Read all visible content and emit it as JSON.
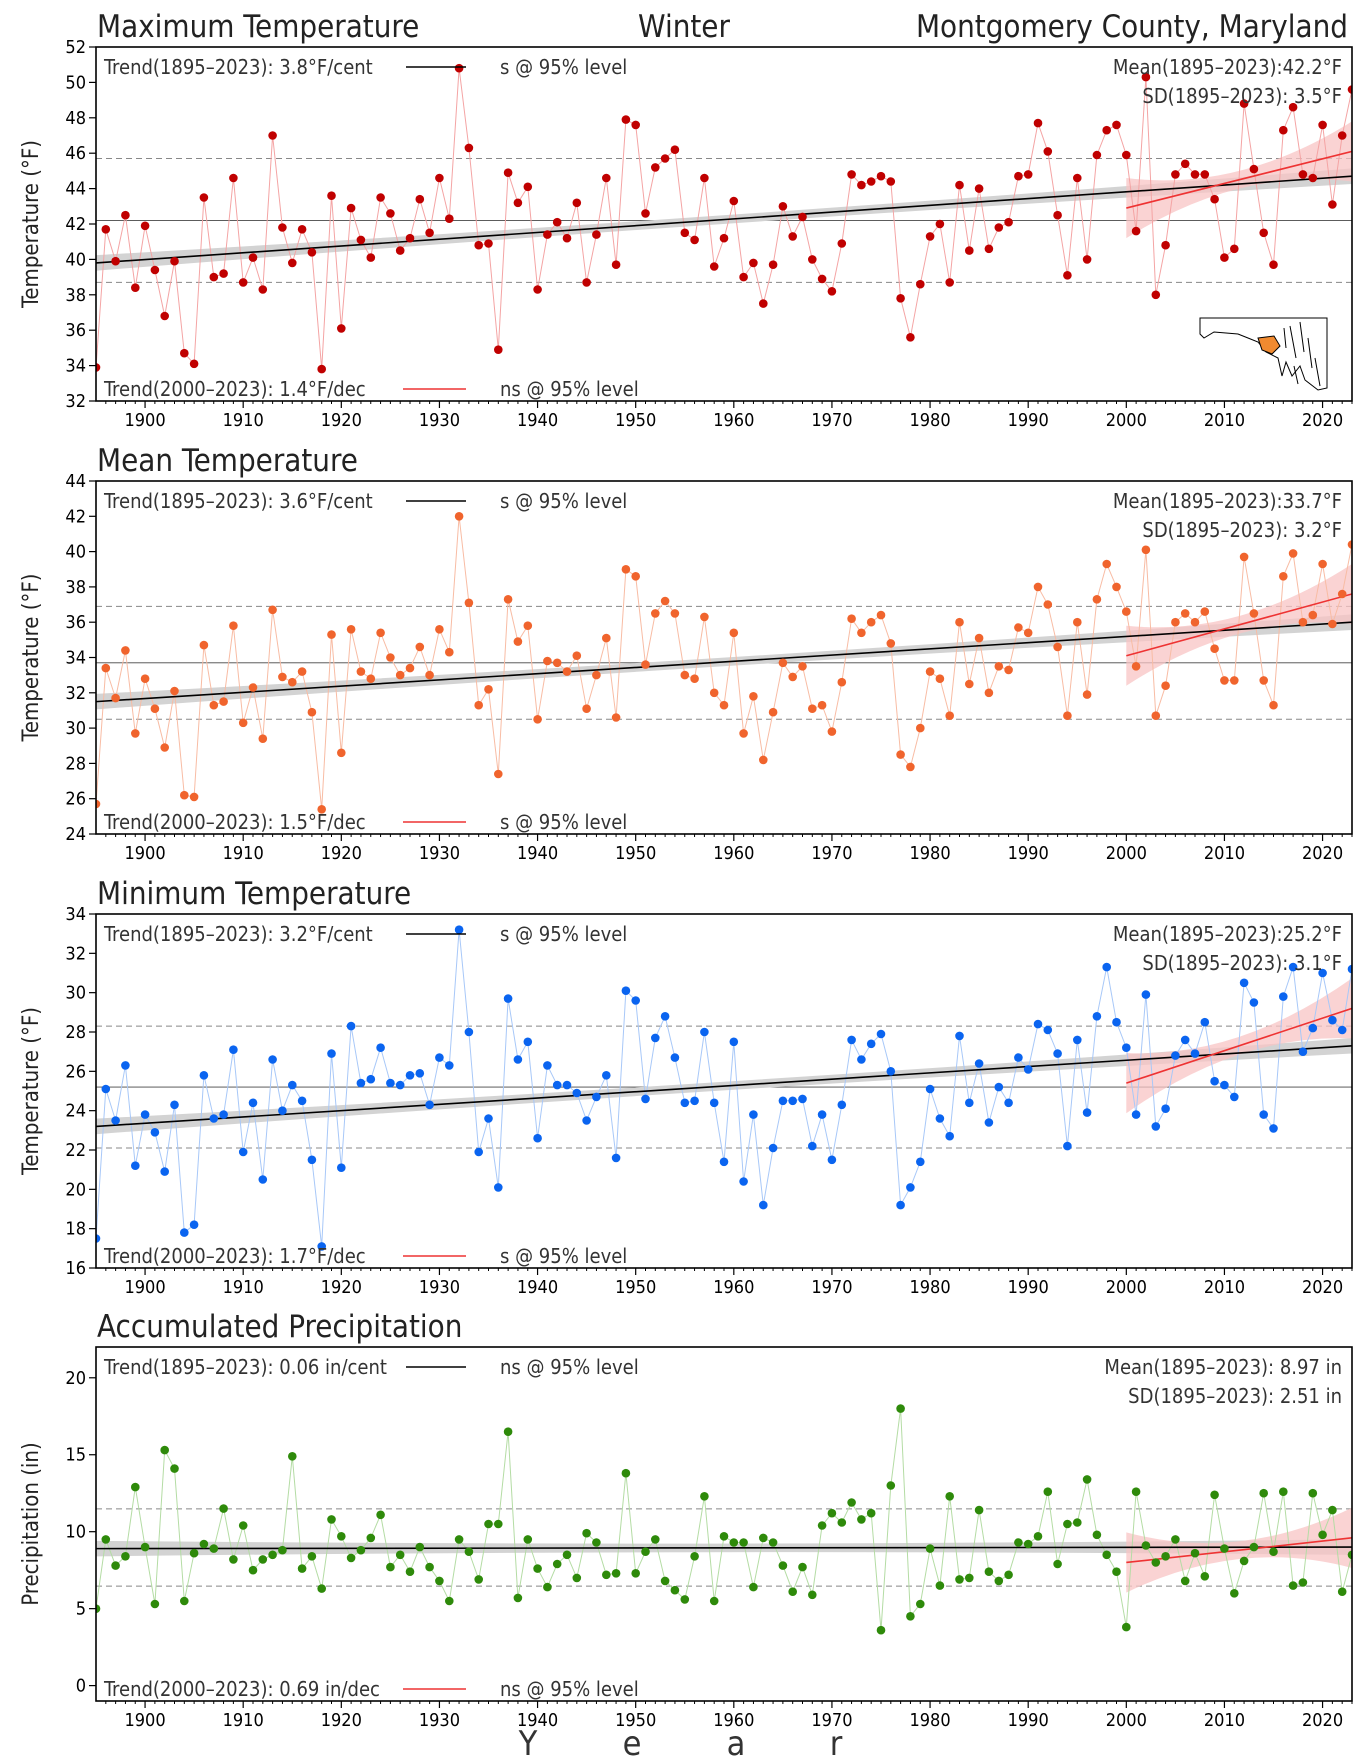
{
  "header": {
    "left": "Maximum Temperature",
    "center": "Winter",
    "right": "Montgomery County, Maryland"
  },
  "xaxis": {
    "label_letters": [
      "Y",
      "e",
      "a",
      "r"
    ],
    "ticks": [
      1900,
      1910,
      1920,
      1930,
      1940,
      1950,
      1960,
      1970,
      1980,
      1990,
      2000,
      2010,
      2020
    ],
    "range": [
      1895,
      2023
    ]
  },
  "trend_line_colors": {
    "long": "#000000",
    "recent": "#ee3333"
  },
  "chart_data": [
    {
      "type": "line",
      "title": "Maximum Temperature",
      "ylabel": "Temperature (°F)",
      "ylim": [
        32,
        52
      ],
      "yticks": [
        32,
        34,
        36,
        38,
        40,
        42,
        44,
        46,
        48,
        50,
        52
      ],
      "color": "#c00000",
      "line_color": "#f4a4a4",
      "grid": false,
      "mean": 42.2,
      "sd": 3.5,
      "trend_long": {
        "label": "Trend(1895–2023):  3.8°F/cent",
        "sig": "s @ 95% level",
        "start": 39.8,
        "end": 44.7
      },
      "trend_recent": {
        "label": "Trend(2000–2023):  1.4°F/dec",
        "sig": "ns @ 95% level",
        "start": 42.9,
        "end": 46.1
      },
      "mean_label": "Mean(1895–2023):42.2°F",
      "sd_label": "SD(1895–2023): 3.5°F",
      "inset_map": true,
      "years_start": 1895,
      "values": [
        33.9,
        41.7,
        39.9,
        42.5,
        38.4,
        41.9,
        39.4,
        36.8,
        39.9,
        34.7,
        34.1,
        43.5,
        39.0,
        39.2,
        44.6,
        38.7,
        40.1,
        38.3,
        47.0,
        41.8,
        39.8,
        41.7,
        40.4,
        33.8,
        43.6,
        36.1,
        42.9,
        41.1,
        40.1,
        43.5,
        42.6,
        40.5,
        41.2,
        43.4,
        41.5,
        44.6,
        42.3,
        50.8,
        46.3,
        40.8,
        40.9,
        34.9,
        44.9,
        43.2,
        44.1,
        38.3,
        41.4,
        42.1,
        41.2,
        43.2,
        38.7,
        41.4,
        44.6,
        39.7,
        47.9,
        47.6,
        42.6,
        45.2,
        45.7,
        46.2,
        41.5,
        41.1,
        44.6,
        39.6,
        41.2,
        43.3,
        39.0,
        39.8,
        37.5,
        39.7,
        43.0,
        41.3,
        42.4,
        40.0,
        38.9,
        38.2,
        40.9,
        44.8,
        44.2,
        44.4,
        44.7,
        44.4,
        37.8,
        35.6,
        38.6,
        41.3,
        42.0,
        38.7,
        44.2,
        40.5,
        44.0,
        40.6,
        41.8,
        42.1,
        44.7,
        44.8,
        47.7,
        46.1,
        42.5,
        39.1,
        44.6,
        40.0,
        45.9,
        47.3,
        47.6,
        45.9,
        41.6,
        50.3,
        38.0,
        40.8,
        44.8,
        45.4,
        44.8,
        44.8,
        43.4,
        40.1,
        40.6,
        48.8,
        45.1,
        41.5,
        39.7,
        47.3,
        48.6,
        44.8,
        44.6,
        47.6,
        43.1,
        47.0,
        49.6
      ]
    },
    {
      "type": "line",
      "title": "Mean Temperature",
      "ylabel": "Temperature (°F)",
      "ylim": [
        24,
        44
      ],
      "yticks": [
        24,
        26,
        28,
        30,
        32,
        34,
        36,
        38,
        40,
        42,
        44
      ],
      "color": "#f0642d",
      "line_color": "#f8bca4",
      "grid": false,
      "mean": 33.7,
      "sd": 3.2,
      "trend_long": {
        "label": "Trend(1895–2023):  3.6°F/cent",
        "sig": "s @ 95% level",
        "start": 31.5,
        "end": 36.0
      },
      "trend_recent": {
        "label": "Trend(2000–2023):  1.5°F/dec",
        "sig": "s @ 95% level",
        "start": 34.1,
        "end": 37.6
      },
      "mean_label": "Mean(1895–2023):33.7°F",
      "sd_label": "SD(1895–2023): 3.2°F",
      "inset_map": false,
      "years_start": 1895,
      "values": [
        25.7,
        33.4,
        31.7,
        34.4,
        29.7,
        32.8,
        31.1,
        28.9,
        32.1,
        26.2,
        26.1,
        34.7,
        31.3,
        31.5,
        35.8,
        30.3,
        32.3,
        29.4,
        36.7,
        32.9,
        32.6,
        33.2,
        30.9,
        25.4,
        35.3,
        28.6,
        35.6,
        33.2,
        32.8,
        35.4,
        34.0,
        33.0,
        33.4,
        34.6,
        33.0,
        35.6,
        34.3,
        42.0,
        37.1,
        31.3,
        32.2,
        27.4,
        37.3,
        34.9,
        35.8,
        30.5,
        33.8,
        33.7,
        33.2,
        34.1,
        31.1,
        33.0,
        35.1,
        30.6,
        39.0,
        38.6,
        33.6,
        36.5,
        37.2,
        36.5,
        33.0,
        32.8,
        36.3,
        32.0,
        31.3,
        35.4,
        29.7,
        31.8,
        28.2,
        30.9,
        33.7,
        32.9,
        33.5,
        31.1,
        31.3,
        29.8,
        32.6,
        36.2,
        35.4,
        36.0,
        36.4,
        34.8,
        28.5,
        27.8,
        30.0,
        33.2,
        32.8,
        30.7,
        36.0,
        32.5,
        35.1,
        32.0,
        33.5,
        33.3,
        35.7,
        35.4,
        38.0,
        37.0,
        34.6,
        30.7,
        36.0,
        31.9,
        37.3,
        39.3,
        38.0,
        36.6,
        33.5,
        40.1,
        30.7,
        32.4,
        36.0,
        36.5,
        36.0,
        36.6,
        34.5,
        32.7,
        32.7,
        39.7,
        36.5,
        32.7,
        31.3,
        38.6,
        39.9,
        36.0,
        36.4,
        39.3,
        35.9,
        37.6,
        40.4
      ]
    },
    {
      "type": "line",
      "title": "Minimum Temperature",
      "ylabel": "Temperature (°F)",
      "ylim": [
        16,
        34
      ],
      "yticks": [
        16,
        18,
        20,
        22,
        24,
        26,
        28,
        30,
        32,
        34
      ],
      "color": "#0a64f0",
      "line_color": "#a8c8f8",
      "grid": false,
      "mean": 25.2,
      "sd": 3.1,
      "trend_long": {
        "label": "Trend(1895–2023):  3.2°F/cent",
        "sig": "s @ 95% level",
        "start": 23.2,
        "end": 27.3
      },
      "trend_recent": {
        "label": "Trend(2000–2023):  1.7°F/dec",
        "sig": "s @ 95% level",
        "start": 25.4,
        "end": 29.2
      },
      "mean_label": "Mean(1895–2023):25.2°F",
      "sd_label": "SD(1895–2023): 3.1°F",
      "inset_map": false,
      "years_start": 1895,
      "values": [
        17.5,
        25.1,
        23.5,
        26.3,
        21.2,
        23.8,
        22.9,
        20.9,
        24.3,
        17.8,
        18.2,
        25.8,
        23.6,
        23.8,
        27.1,
        21.9,
        24.4,
        20.5,
        26.6,
        24.0,
        25.3,
        24.5,
        21.5,
        17.1,
        26.9,
        21.1,
        28.3,
        25.4,
        25.6,
        27.2,
        25.4,
        25.3,
        25.8,
        25.9,
        24.3,
        26.7,
        26.3,
        33.2,
        28.0,
        21.9,
        23.6,
        20.1,
        29.7,
        26.6,
        27.5,
        22.6,
        26.3,
        25.3,
        25.3,
        24.9,
        23.5,
        24.7,
        25.8,
        21.6,
        30.1,
        29.6,
        24.6,
        27.7,
        28.8,
        26.7,
        24.4,
        24.5,
        28.0,
        24.4,
        21.4,
        27.5,
        20.4,
        23.8,
        19.2,
        22.1,
        24.5,
        24.5,
        24.6,
        22.2,
        23.8,
        21.5,
        24.3,
        27.6,
        26.6,
        27.4,
        27.9,
        26.0,
        19.2,
        20.1,
        21.4,
        25.1,
        23.6,
        22.7,
        27.8,
        24.4,
        26.4,
        23.4,
        25.2,
        24.4,
        26.7,
        26.1,
        28.4,
        28.1,
        26.9,
        22.2,
        27.6,
        23.9,
        28.8,
        31.3,
        28.5,
        27.2,
        23.8,
        29.9,
        23.2,
        24.1,
        26.8,
        27.6,
        26.9,
        28.5,
        25.5,
        25.3,
        24.7,
        30.5,
        29.5,
        23.8,
        23.1,
        29.8,
        31.3,
        27.0,
        28.2,
        31.0,
        28.6,
        28.1,
        31.2
      ]
    },
    {
      "type": "line",
      "title": "Accumulated Precipitation",
      "ylabel": "Precipitation (in)",
      "ylim": [
        -1,
        22
      ],
      "yticks": [
        0,
        5,
        10,
        15,
        20
      ],
      "color": "#2e8a0a",
      "line_color": "#b4dca4",
      "grid": false,
      "mean": 8.97,
      "sd": 2.51,
      "trend_long": {
        "label": "Trend(1895–2023):  0.06 in/cent",
        "sig": "ns @ 95% level",
        "start": 8.9,
        "end": 9.0
      },
      "trend_recent": {
        "label": "Trend(2000–2023):  0.69 in/dec",
        "sig": "ns @ 95% level",
        "start": 8.0,
        "end": 9.6
      },
      "mean_label": "Mean(1895–2023): 8.97 in",
      "sd_label": "SD(1895–2023): 2.51 in",
      "inset_map": false,
      "years_start": 1895,
      "values": [
        5.0,
        9.5,
        7.8,
        8.4,
        12.9,
        9.0,
        5.3,
        15.3,
        14.1,
        5.5,
        8.6,
        9.2,
        8.9,
        11.5,
        8.2,
        10.4,
        7.5,
        8.2,
        8.5,
        8.8,
        14.9,
        7.6,
        8.4,
        6.3,
        10.8,
        9.7,
        8.3,
        8.8,
        9.6,
        11.1,
        7.7,
        8.5,
        7.4,
        9.0,
        7.7,
        6.8,
        5.5,
        9.5,
        8.7,
        6.9,
        10.5,
        10.5,
        16.5,
        5.7,
        9.5,
        7.6,
        6.4,
        7.9,
        8.5,
        7.0,
        9.9,
        9.3,
        7.2,
        7.3,
        13.8,
        7.3,
        8.7,
        9.5,
        6.8,
        6.2,
        5.6,
        8.4,
        12.3,
        5.5,
        9.7,
        9.3,
        9.3,
        6.4,
        9.6,
        9.3,
        7.8,
        6.1,
        7.7,
        5.9,
        10.4,
        11.2,
        10.6,
        11.9,
        10.8,
        11.2,
        3.6,
        13.0,
        18.0,
        4.5,
        5.3,
        8.9,
        6.5,
        12.3,
        6.9,
        7.0,
        11.4,
        7.4,
        6.8,
        7.2,
        9.3,
        9.2,
        9.7,
        12.6,
        7.9,
        10.5,
        10.6,
        13.4,
        9.8,
        8.5,
        7.4,
        3.8,
        12.6,
        9.1,
        8.0,
        8.4,
        9.5,
        6.8,
        8.6,
        7.1,
        12.4,
        8.9,
        6.0,
        8.1,
        9.0,
        12.5,
        8.7,
        12.6,
        6.5,
        6.7,
        12.5,
        9.8,
        11.4,
        6.1,
        8.5
      ]
    }
  ]
}
